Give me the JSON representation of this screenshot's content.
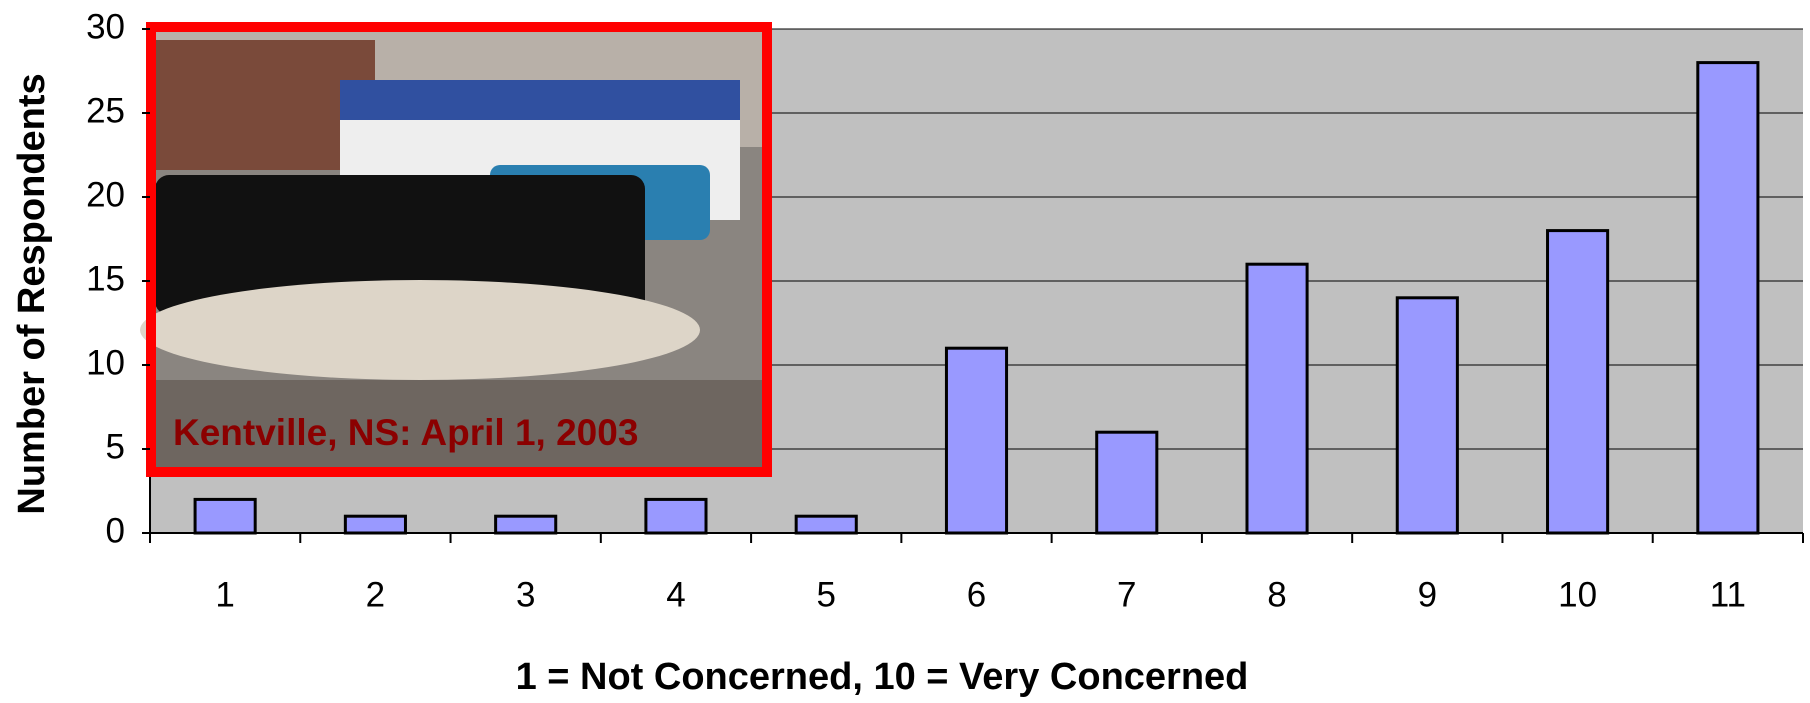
{
  "chart_data": {
    "type": "bar",
    "categories": [
      "1",
      "2",
      "3",
      "4",
      "5",
      "6",
      "7",
      "8",
      "9",
      "10",
      "11"
    ],
    "values": [
      2,
      1,
      1,
      2,
      1,
      11,
      6,
      16,
      14,
      18,
      28
    ],
    "color": "#9999ff",
    "ylim": [
      0,
      30
    ],
    "yticks": [
      0,
      5,
      10,
      15,
      20,
      25,
      30
    ],
    "grid": true,
    "y_label": "Number of Respondents",
    "x_label": "1 = Not Concerned, 10 = Very Concerned",
    "annotation": "Kentville, NS: April 1, 2003"
  }
}
